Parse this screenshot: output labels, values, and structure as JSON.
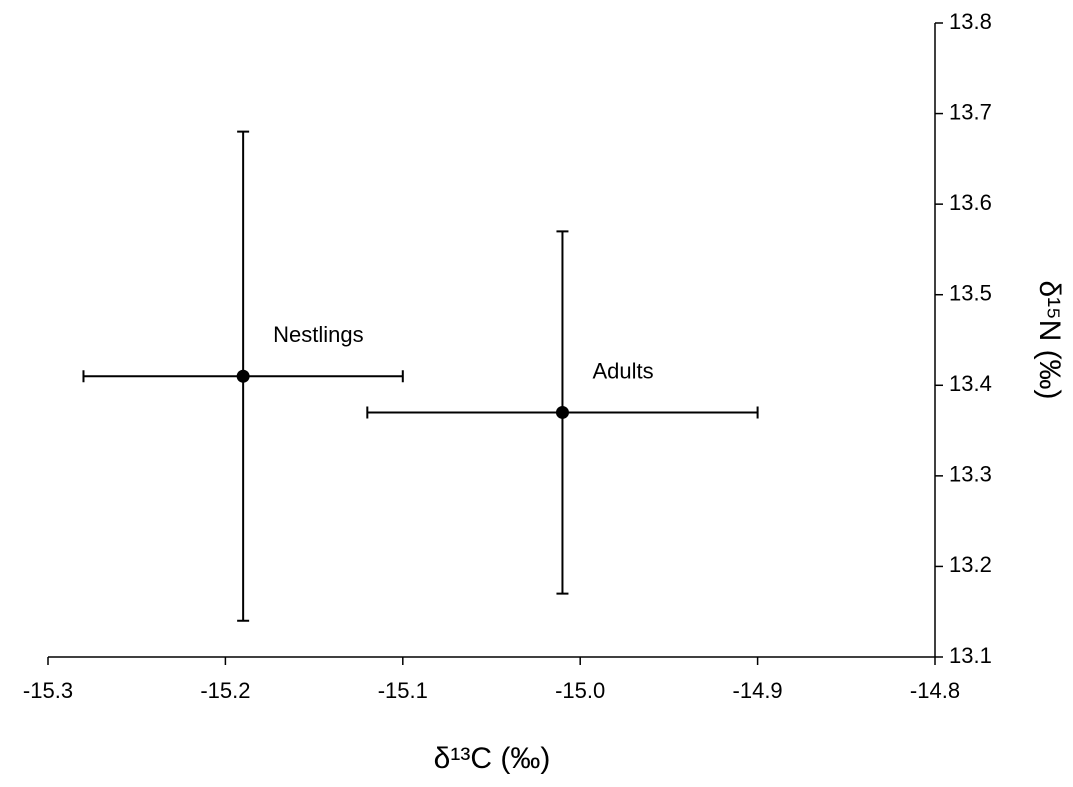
{
  "chart_data": {
    "type": "scatter",
    "x_label": "δ¹³C (‰)",
    "y_label": "δ¹⁵N (‰)",
    "xlim": [
      -15.3,
      -14.8
    ],
    "xticks": [
      -15.3,
      -15.2,
      -15.1,
      {
        "value": -15,
        "label": "-15.0"
      },
      -14.9,
      -14.8
    ],
    "ylim": [
      13.1,
      13.8
    ],
    "yticks": [
      13.1,
      13.2,
      13.3,
      13.4,
      13.5,
      13.6,
      13.7,
      13.8
    ],
    "y_axis_side": "right",
    "series": [
      {
        "name": "Nestlings",
        "color": "#000000",
        "x": [
          -15.19
        ],
        "values": [
          13.41
        ],
        "xerr": [
          0.09
        ],
        "yerr": [
          0.27
        ]
      },
      {
        "name": "Adults",
        "color": "#000000",
        "x": [
          -15.01
        ],
        "values": [
          13.37
        ],
        "xerr": [
          0.11
        ],
        "yerr": [
          0.2
        ]
      }
    ]
  }
}
